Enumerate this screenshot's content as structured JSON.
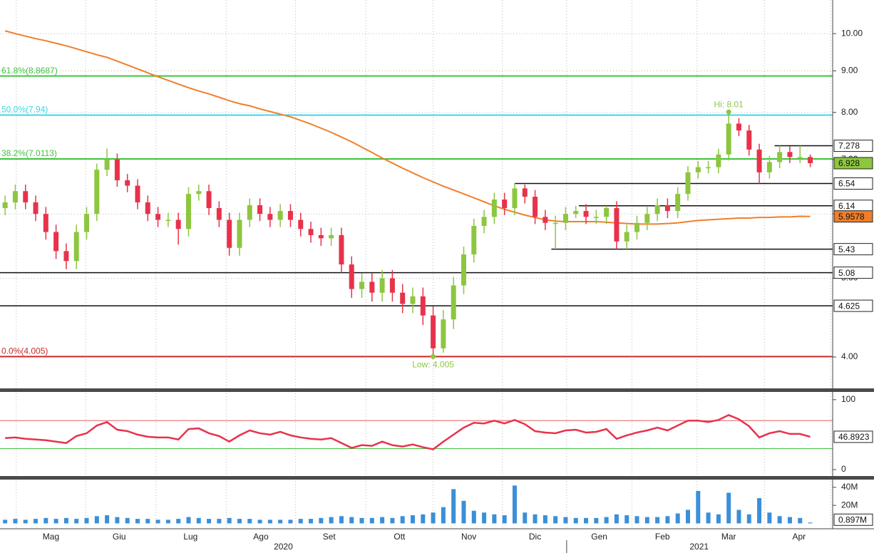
{
  "chart_data": [
    {
      "type": "candlestick",
      "log_scale": true,
      "grid": true,
      "xlim": [
        -0.5,
        81.2
      ],
      "ylim": [
        3.66,
        11.0
      ],
      "yticks": [
        {
          "value": 4,
          "label": "4.00"
        },
        {
          "value": 5,
          "label": "5.00"
        },
        {
          "value": 6,
          "label": "6.00"
        },
        {
          "value": 7,
          "label": "7.00"
        },
        {
          "value": 8,
          "label": "8.00"
        },
        {
          "value": 9,
          "label": "9.00"
        },
        {
          "value": 10,
          "label": "10.00"
        }
      ],
      "xticks": [
        {
          "value": 4.5,
          "label": "Mag"
        },
        {
          "value": 11.2,
          "label": "Giu"
        },
        {
          "value": 18.2,
          "label": "Lug"
        },
        {
          "value": 25.1,
          "label": "Ago"
        },
        {
          "value": 31.8,
          "label": "Set"
        },
        {
          "value": 38.7,
          "label": "Ott"
        },
        {
          "value": 45.5,
          "label": "Nov"
        },
        {
          "value": 52.0,
          "label": "Dic"
        },
        {
          "value": 58.3,
          "label": "Gen"
        },
        {
          "value": 64.5,
          "label": "Feb"
        },
        {
          "value": 71.0,
          "label": "Mar"
        },
        {
          "value": 77.9,
          "label": "Apr"
        }
      ],
      "xgrid": [
        1.1,
        7.9,
        14.8,
        21.7,
        28.5,
        35.4,
        42.0,
        48.8,
        55.1,
        61.5,
        67.9,
        74.5,
        81.0
      ],
      "years": [
        {
          "value": 27.3,
          "label": "2020"
        },
        {
          "value": 68.1,
          "label": "2021"
        }
      ],
      "up_color": "#8dc63f",
      "down_color": "#e8324b",
      "open": [
        6.1,
        6.2,
        6.4,
        6.2,
        6.0,
        5.7,
        5.4,
        5.25,
        5.7,
        6.0,
        6.8,
        7.0,
        6.6,
        6.5,
        6.2,
        6.0,
        5.9,
        5.9,
        5.75,
        6.35,
        6.4,
        6.1,
        5.9,
        5.45,
        5.9,
        6.15,
        6.0,
        5.9,
        6.05,
        5.9,
        5.75,
        5.65,
        5.6,
        5.65,
        5.2,
        4.85,
        4.95,
        4.8,
        5.0,
        4.8,
        4.65,
        4.75,
        4.5,
        4.1,
        4.45,
        4.9,
        5.35,
        5.8,
        5.95,
        6.25,
        6.1,
        6.45,
        6.3,
        5.95,
        5.85,
        5.85,
        6.0,
        6.05,
        5.95,
        5.95,
        6.1,
        5.55,
        5.7,
        5.85,
        6.0,
        6.15,
        6.05,
        6.35,
        6.75,
        6.85,
        6.85,
        7.1,
        7.75,
        7.6,
        7.2,
        6.75,
        6.95,
        7.15,
        7.05,
        7.05
      ],
      "high": [
        6.32,
        6.52,
        6.52,
        6.32,
        6.12,
        5.82,
        5.52,
        5.82,
        6.12,
        6.92,
        7.22,
        7.12,
        6.72,
        6.62,
        6.32,
        6.12,
        6.02,
        6.02,
        6.47,
        6.52,
        6.52,
        6.22,
        6.02,
        6.02,
        6.27,
        6.27,
        6.12,
        6.17,
        6.17,
        6.02,
        5.87,
        5.77,
        5.77,
        5.77,
        5.32,
        5.07,
        5.07,
        5.12,
        5.12,
        4.92,
        4.87,
        4.87,
        4.62,
        4.57,
        5.02,
        5.47,
        5.92,
        6.07,
        6.37,
        6.37,
        6.55,
        6.52,
        6.42,
        6.07,
        5.97,
        6.12,
        6.14,
        6.17,
        6.07,
        6.14,
        6.22,
        5.82,
        5.97,
        6.12,
        6.27,
        6.27,
        6.47,
        6.87,
        6.97,
        6.97,
        7.22,
        8.01,
        7.87,
        7.72,
        7.32,
        7.07,
        7.278,
        7.27,
        7.278,
        7.1
      ],
      "low": [
        5.98,
        6.08,
        6.08,
        5.88,
        5.58,
        5.28,
        5.13,
        5.13,
        5.58,
        5.88,
        6.68,
        6.48,
        6.38,
        6.08,
        5.88,
        5.78,
        5.78,
        5.5,
        5.63,
        6.23,
        5.98,
        5.78,
        5.33,
        5.33,
        5.78,
        5.88,
        5.78,
        5.78,
        5.78,
        5.63,
        5.53,
        5.48,
        5.48,
        5.08,
        4.73,
        4.73,
        4.68,
        4.68,
        4.68,
        4.53,
        4.53,
        4.38,
        4.005,
        4.05,
        4.33,
        4.78,
        5.23,
        5.68,
        5.83,
        5.98,
        5.98,
        6.18,
        5.83,
        5.73,
        5.43,
        5.73,
        5.93,
        5.83,
        5.83,
        5.83,
        5.43,
        5.43,
        5.58,
        5.73,
        5.88,
        5.93,
        5.93,
        6.23,
        6.63,
        6.73,
        6.73,
        6.98,
        7.48,
        7.08,
        6.54,
        6.63,
        6.83,
        6.93,
        6.93,
        6.85
      ],
      "close": [
        6.2,
        6.4,
        6.2,
        6.0,
        5.7,
        5.4,
        5.25,
        5.7,
        6.0,
        6.8,
        7.0,
        6.6,
        6.5,
        6.2,
        6.0,
        5.9,
        5.9,
        5.75,
        6.35,
        6.4,
        6.1,
        5.9,
        5.45,
        5.9,
        6.15,
        6.0,
        5.9,
        6.05,
        5.9,
        5.75,
        5.65,
        5.6,
        5.65,
        5.2,
        4.85,
        4.95,
        4.8,
        5.0,
        4.8,
        4.65,
        4.75,
        4.5,
        4.1,
        4.45,
        4.9,
        5.35,
        5.8,
        5.95,
        6.25,
        6.1,
        6.45,
        6.3,
        5.95,
        5.85,
        5.85,
        6.0,
        6.05,
        5.95,
        5.95,
        6.1,
        5.55,
        5.7,
        5.85,
        6.0,
        6.15,
        6.05,
        6.35,
        6.75,
        6.85,
        6.85,
        7.1,
        7.75,
        7.6,
        7.2,
        6.75,
        6.95,
        7.15,
        7.05,
        7.05,
        6.928
      ],
      "last_color": "#8dc63f",
      "moving_average": {
        "color": "#f07f2a",
        "values": [
          10.08,
          10.0,
          9.93,
          9.86,
          9.8,
          9.73,
          9.66,
          9.58,
          9.5,
          9.42,
          9.35,
          9.25,
          9.15,
          9.05,
          8.95,
          8.85,
          8.76,
          8.67,
          8.58,
          8.5,
          8.43,
          8.35,
          8.27,
          8.2,
          8.15,
          8.08,
          8.02,
          7.96,
          7.9,
          7.82,
          7.74,
          7.65,
          7.56,
          7.46,
          7.36,
          7.25,
          7.14,
          7.03,
          6.93,
          6.83,
          6.74,
          6.65,
          6.57,
          6.49,
          6.42,
          6.35,
          6.28,
          6.21,
          6.14,
          6.08,
          6.03,
          5.98,
          5.94,
          5.9,
          5.88,
          5.87,
          5.87,
          5.87,
          5.87,
          5.86,
          5.85,
          5.84,
          5.83,
          5.83,
          5.83,
          5.84,
          5.85,
          5.87,
          5.89,
          5.9,
          5.91,
          5.92,
          5.93,
          5.93,
          5.94,
          5.94,
          5.95,
          5.95,
          5.96,
          5.9578
        ]
      },
      "fib_levels": [
        {
          "label": "61.8%(8.8687)",
          "value": 8.8687,
          "color": "#3ec43e"
        },
        {
          "label": "50.0%(7.94)",
          "value": 7.94,
          "color": "#3fd6e6"
        },
        {
          "label": "38.2%(7.0113)",
          "value": 7.0113,
          "color": "#3ec43e"
        },
        {
          "label": "0.0%(4.005)",
          "value": 4.005,
          "color": "#cc2a2a"
        }
      ],
      "levels": [
        {
          "value": 7.278,
          "start": 75.5
        },
        {
          "value": 6.54,
          "start": 50.0
        },
        {
          "value": 6.14,
          "start": 56.3
        },
        {
          "value": 5.43,
          "start": 53.6
        },
        {
          "value": 5.08
        },
        {
          "value": 4.625
        }
      ],
      "annotations": [
        {
          "text": "Hi: 8.01",
          "value": 8.01,
          "index": 71,
          "color": "#8dc63f"
        },
        {
          "text": "Low: 4.005",
          "value": 4.005,
          "index": 42,
          "color": "#8dc63f"
        }
      ]
    },
    {
      "type": "line",
      "color": "#e8324b",
      "ylim": [
        -9.2,
        109
      ],
      "yticks": [
        0,
        100
      ],
      "bands": [
        {
          "value": 70,
          "color": "#e06060"
        },
        {
          "value": 30,
          "color": "#3ec43e"
        }
      ],
      "values": [
        45,
        46,
        44,
        43,
        42,
        40,
        38,
        48,
        52,
        63,
        68,
        57,
        55,
        50,
        47,
        46,
        46,
        43,
        58,
        59,
        52,
        48,
        40,
        49,
        56,
        52,
        50,
        54,
        49,
        46,
        44,
        43,
        45,
        38,
        31,
        35,
        34,
        40,
        35,
        33,
        36,
        32,
        29,
        40,
        50,
        60,
        67,
        66,
        70,
        66,
        71,
        65,
        55,
        53,
        52,
        56,
        57,
        53,
        54,
        58,
        44,
        49,
        53,
        56,
        60,
        56,
        63,
        70,
        70,
        68,
        71,
        78,
        72,
        62,
        46,
        52,
        55,
        51,
        51,
        46.8923
      ]
    },
    {
      "type": "bar",
      "color": "#3a8fd8",
      "ylim": [
        -6,
        47
      ],
      "yticks": [
        {
          "value": 20,
          "label": "20M"
        },
        {
          "value": 40,
          "label": "40M"
        }
      ],
      "values": [
        4,
        5,
        4,
        5,
        6,
        5,
        6,
        5,
        6,
        8,
        9,
        7,
        6,
        5,
        5,
        4,
        4,
        5,
        7,
        6,
        5,
        5,
        6,
        5,
        5,
        4,
        4,
        4,
        4,
        5,
        5,
        6,
        7,
        8,
        7,
        6,
        6,
        7,
        6,
        8,
        9,
        10,
        12,
        18,
        38,
        25,
        14,
        12,
        10,
        9,
        42,
        12,
        10,
        9,
        8,
        7,
        6,
        6,
        6,
        7,
        10,
        9,
        8,
        7,
        7,
        8,
        11,
        15,
        36,
        12,
        10,
        34,
        15,
        10,
        28,
        12,
        8,
        7,
        6,
        0.897
      ],
      "last_value_label": "0.897M"
    }
  ]
}
